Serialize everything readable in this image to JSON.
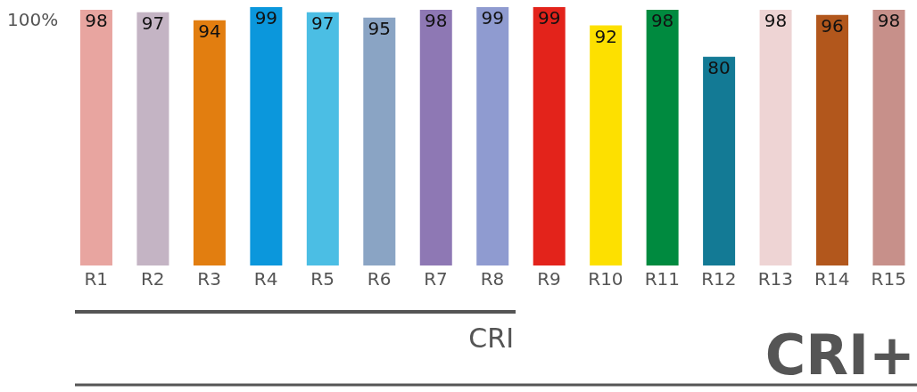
{
  "chart_data": {
    "type": "bar",
    "categories": [
      "R1",
      "R2",
      "R3",
      "R4",
      "R5",
      "R6",
      "R7",
      "R8",
      "R9",
      "R10",
      "R11",
      "R12",
      "R13",
      "R14",
      "R15"
    ],
    "values": [
      98,
      97,
      94,
      99,
      97,
      95,
      98,
      99,
      99,
      92,
      98,
      80,
      98,
      96,
      98
    ],
    "colors": [
      "#e8a5a0",
      "#c4b4c4",
      "#e27e10",
      "#0b97dc",
      "#4bbee4",
      "#8aa4c4",
      "#8e78b4",
      "#8f9bd0",
      "#e3231b",
      "#fde000",
      "#008a3f",
      "#137a95",
      "#eed4d4",
      "#b2571c",
      "#c7908a"
    ],
    "data_labels": true,
    "annotations": [
      "100%",
      "CRI",
      "CRI+"
    ]
  }
}
